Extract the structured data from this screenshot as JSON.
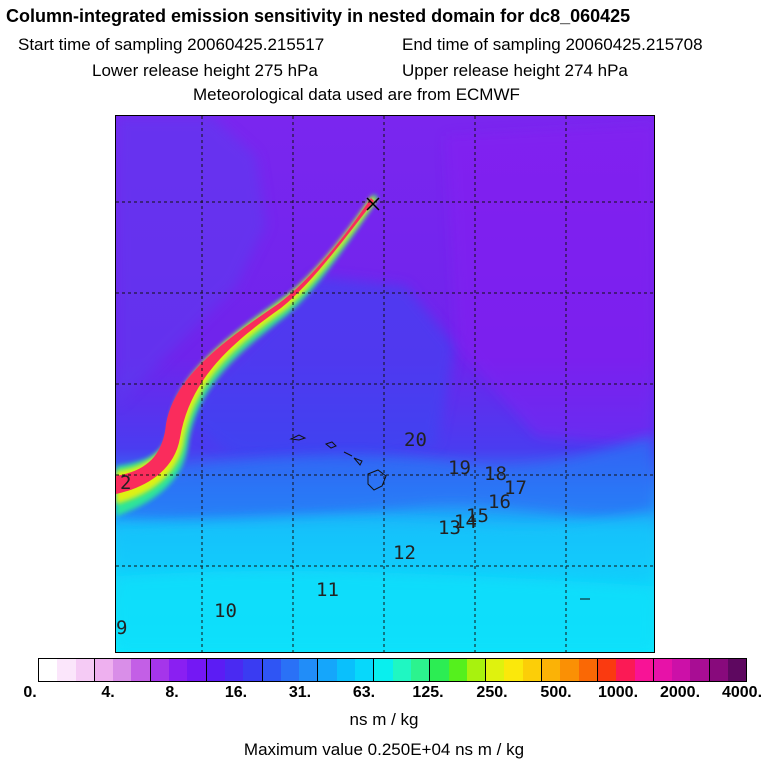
{
  "header": {
    "title": "Column-integrated emission sensitivity in nested domain for dc8_060425",
    "start_label": "Start time of sampling 20060425.215517",
    "end_label": "End time of sampling 20060425.215708",
    "lower_label": "Lower release height  275 hPa",
    "upper_label": "Upper release height  274 hPa",
    "met_label": "Meteorological data used are from ECMWF"
  },
  "map": {
    "trajectory_labels": [
      "2",
      "9",
      "10",
      "11",
      "12",
      "13",
      "14",
      "15",
      "16",
      "17",
      "18",
      "19",
      "20"
    ],
    "release_marker": "x-marker"
  },
  "colorbar": {
    "colors": [
      "#ffffff",
      "#fbe6fb",
      "#f5cbf5",
      "#eeb0ef",
      "#d98ee8",
      "#c35fe6",
      "#a535ea",
      "#8a1ff2",
      "#7418f4",
      "#5c1cf4",
      "#4a2af2",
      "#3a3cf2",
      "#2f55f4",
      "#2a71f6",
      "#218df8",
      "#15a6fb",
      "#0ac0fc",
      "#07d8fb",
      "#09efee",
      "#1ff7c2",
      "#2cf38e",
      "#2ced53",
      "#55f01d",
      "#a8f20e",
      "#dff20e",
      "#fbe80b",
      "#fcce08",
      "#fbb206",
      "#fa9005",
      "#fa6805",
      "#fa3a10",
      "#fb1a55",
      "#f81396",
      "#e712a8",
      "#cc10a8",
      "#a80d94",
      "#880a7c",
      "#5e0860"
    ],
    "tick_labels": [
      "0.",
      "4.",
      "8.",
      "16.",
      "31.",
      "63.",
      "125.",
      "250.",
      "500.",
      "1000.",
      "2000.",
      "4000."
    ],
    "units": "ns m / kg"
  },
  "footer": {
    "max_value": "Maximum value  0.250E+04 ns m / kg"
  }
}
